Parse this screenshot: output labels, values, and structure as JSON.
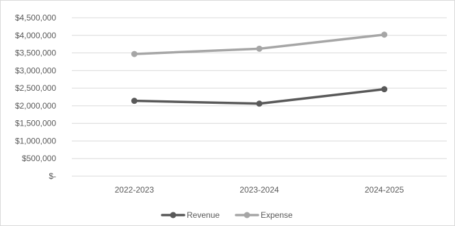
{
  "chart_data": {
    "type": "line",
    "title": "",
    "categories": [
      "2022-2023",
      "2023-2024",
      "2024-2025"
    ],
    "series": [
      {
        "name": "Revenue",
        "values": [
          2140000,
          2060000,
          2470000
        ],
        "color": "#595959"
      },
      {
        "name": "Expense",
        "values": [
          3470000,
          3620000,
          4020000
        ],
        "color": "#a6a6a6"
      }
    ],
    "ylim": [
      0,
      4500000
    ],
    "yticks": [
      {
        "value": 4500000,
        "label": "$4,500,000"
      },
      {
        "value": 4000000,
        "label": "$4,000,000"
      },
      {
        "value": 3500000,
        "label": "$3,500,000"
      },
      {
        "value": 3000000,
        "label": "$3,000,000"
      },
      {
        "value": 2500000,
        "label": "$2,500,000"
      },
      {
        "value": 2000000,
        "label": "$2,000,000"
      },
      {
        "value": 1500000,
        "label": "$1,500,000"
      },
      {
        "value": 1000000,
        "label": "$1,000,000"
      },
      {
        "value": 500000,
        "label": "$500,000"
      },
      {
        "value": 0,
        "label": "$-"
      }
    ],
    "grid": true,
    "legend": "bottom"
  }
}
